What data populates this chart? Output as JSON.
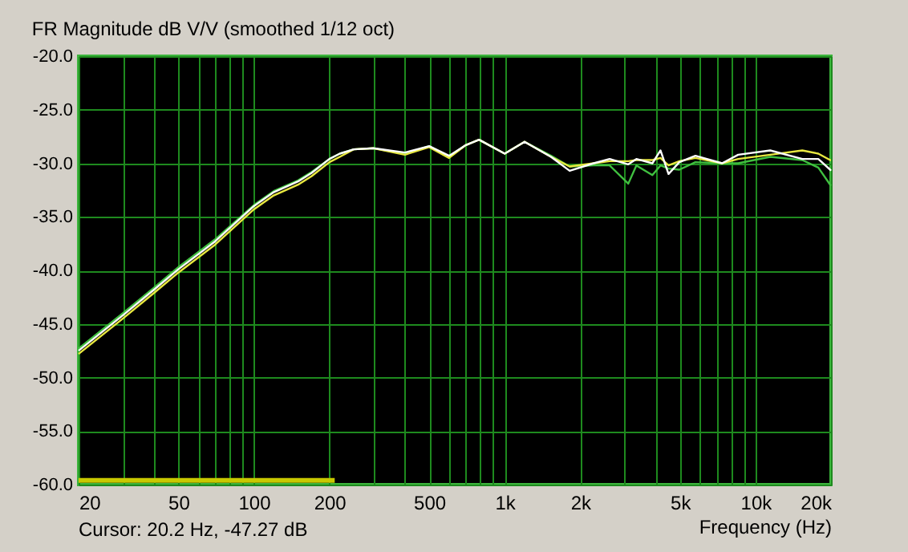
{
  "chart_data": {
    "type": "line",
    "title": "FR Magnitude dB V/V (smoothed 1/12 oct)",
    "xlabel": "Frequency (Hz)",
    "annotations": [
      "Cursor: 20.2 Hz, -47.27 dB"
    ],
    "x": [
      20,
      30,
      40,
      50,
      70,
      100,
      120,
      150,
      170,
      200,
      220,
      250,
      300,
      400,
      500,
      600,
      700,
      790,
      1000,
      1200,
      1530,
      1815,
      2265,
      2620,
      3110,
      3350,
      3880,
      4180,
      4500,
      4970,
      5760,
      7360,
      8530,
      11450,
      15370,
      17800,
      19850,
      20000
    ],
    "series": [
      {
        "color": "#40c040",
        "values": [
          -47.3,
          -44.0,
          -41.6,
          -39.7,
          -37.1,
          -33.9,
          -32.6,
          -31.6,
          -30.8,
          -29.6,
          -29.1,
          -28.7,
          -28.6,
          -29.1,
          -28.4,
          -29.4,
          -28.3,
          -27.8,
          -29.1,
          -28.0,
          -29.3,
          -30.3,
          -30.2,
          -30.2,
          -31.9,
          -30.2,
          -31.1,
          -30.2,
          -30.5,
          -30.6,
          -29.9,
          -30.0,
          -30.0,
          -29.4,
          -29.7,
          -30.4,
          -32.0,
          -32.1
        ]
      },
      {
        "color": "#e8e840",
        "values": [
          -47.8,
          -44.5,
          -42.1,
          -40.2,
          -37.6,
          -34.3,
          -33.0,
          -32.0,
          -31.2,
          -29.9,
          -29.4,
          -28.7,
          -28.6,
          -29.2,
          -28.5,
          -29.5,
          -28.3,
          -27.8,
          -29.1,
          -28.0,
          -29.4,
          -30.3,
          -30.0,
          -29.8,
          -29.8,
          -29.7,
          -29.7,
          -29.5,
          -30.2,
          -29.8,
          -29.5,
          -30.0,
          -29.6,
          -29.2,
          -28.8,
          -29.1,
          -29.7,
          -29.7
        ]
      },
      {
        "color": "#ffffff",
        "values": [
          -47.5,
          -44.2,
          -41.8,
          -39.9,
          -37.3,
          -34.0,
          -32.7,
          -31.7,
          -30.9,
          -29.6,
          -29.1,
          -28.7,
          -28.6,
          -29.0,
          -28.4,
          -29.3,
          -28.3,
          -27.8,
          -29.1,
          -28.0,
          -29.4,
          -30.7,
          -30.0,
          -29.6,
          -30.1,
          -29.6,
          -30.0,
          -28.8,
          -31.0,
          -29.9,
          -29.3,
          -30.0,
          -29.2,
          -28.8,
          -29.6,
          -29.6,
          -30.6,
          -30.7
        ]
      },
      {
        "color": "#c8c800",
        "x": [
          20,
          210
        ],
        "values": [
          -59.6,
          -59.6
        ]
      }
    ],
    "xlim": [
      20,
      20000
    ],
    "ylim": [
      -60,
      -20
    ],
    "log": "x",
    "grid": true,
    "marker": "none",
    "line_style": "solid",
    "xticks": [
      20,
      {
        "value": 30,
        "label": null
      },
      {
        "value": 40,
        "label": null
      },
      50,
      {
        "value": 60,
        "label": null
      },
      {
        "value": 70,
        "label": null
      },
      {
        "value": 80,
        "label": null
      },
      {
        "value": 90,
        "label": null
      },
      100,
      200,
      {
        "value": 300,
        "label": null
      },
      {
        "value": 400,
        "label": null
      },
      500,
      {
        "value": 600,
        "label": null
      },
      {
        "value": 700,
        "label": null
      },
      {
        "value": 800,
        "label": null
      },
      {
        "value": 900,
        "label": null
      },
      {
        "value": 1000,
        "label": "1k"
      },
      {
        "value": 2000,
        "label": "2k"
      },
      {
        "value": 3000,
        "label": null
      },
      {
        "value": 4000,
        "label": null
      },
      {
        "value": 5000,
        "label": "5k"
      },
      {
        "value": 6000,
        "label": null
      },
      {
        "value": 7000,
        "label": null
      },
      {
        "value": 8000,
        "label": null
      },
      {
        "value": 9000,
        "label": null
      },
      {
        "value": 10000,
        "label": "10k"
      },
      {
        "value": 20000,
        "label": "20k"
      }
    ],
    "yticks": [
      {
        "value": -60,
        "label": "-60.0"
      },
      {
        "value": -55,
        "label": "-55.0"
      },
      {
        "value": -50,
        "label": "-50.0"
      },
      {
        "value": -45,
        "label": "-45.0"
      },
      {
        "value": -40,
        "label": "-40.0"
      },
      {
        "value": -35,
        "label": "-35.0"
      },
      {
        "value": -30,
        "label": "-30.0"
      },
      {
        "value": -25,
        "label": "-25.0"
      },
      {
        "value": -20,
        "label": "-20.0"
      }
    ]
  }
}
